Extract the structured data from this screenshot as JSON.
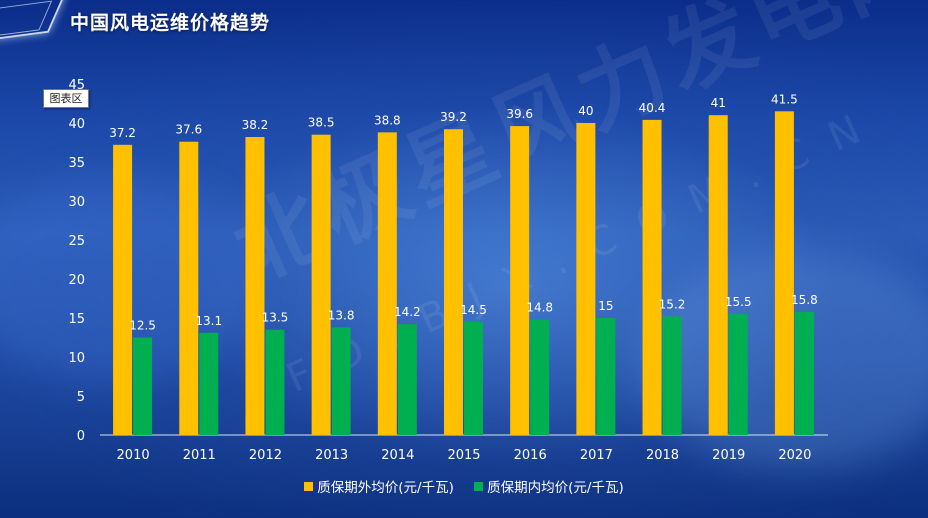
{
  "page": {
    "title": "中国风电运维价格趋势",
    "chart_area_label": "图表区"
  },
  "watermark": {
    "main": "北极星风力发电网",
    "sub": "FD.BJX.COM.CN"
  },
  "colors": {
    "series1": "#FFC000",
    "series2": "#00B050",
    "text": "#FFFFFF"
  },
  "chart_data": {
    "type": "bar",
    "title": "中国风电运维价格趋势",
    "xlabel": "",
    "ylabel": "",
    "ylim": [
      0,
      45
    ],
    "yticks": [
      0,
      5,
      10,
      15,
      20,
      25,
      30,
      35,
      40,
      45
    ],
    "categories": [
      "2010",
      "2011",
      "2012",
      "2013",
      "2014",
      "2015",
      "2016",
      "2017",
      "2018",
      "2019",
      "2020"
    ],
    "series": [
      {
        "name": "质保期外均价(元/千瓦)",
        "color": "#FFC000",
        "values": [
          37.2,
          37.6,
          38.2,
          38.5,
          38.8,
          39.2,
          39.6,
          40,
          40.4,
          41,
          41.5
        ]
      },
      {
        "name": "质保期内均价(元/千瓦)",
        "color": "#00B050",
        "values": [
          12.5,
          13.1,
          13.5,
          13.8,
          14.2,
          14.5,
          14.8,
          15,
          15.2,
          15.5,
          15.8
        ]
      }
    ],
    "legend": "bottom",
    "grid": false
  }
}
